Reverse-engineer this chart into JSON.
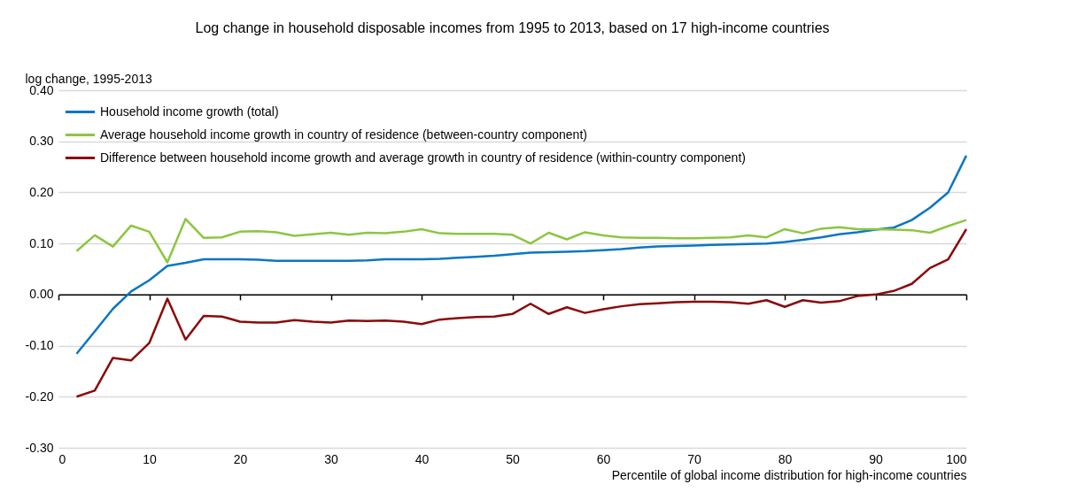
{
  "chart_data": {
    "type": "line",
    "title": "Log change in household disposable incomes from 1995 to 2013, based on 17 high-income countries",
    "xlabel": "Percentile of global income distribution for high-income countries",
    "ylabel": "log change, 1995-2013",
    "x": [
      2,
      4,
      6,
      8,
      10,
      12,
      14,
      16,
      18,
      20,
      22,
      24,
      26,
      28,
      30,
      32,
      34,
      36,
      38,
      40,
      42,
      44,
      46,
      48,
      50,
      52,
      54,
      56,
      58,
      60,
      62,
      64,
      66,
      68,
      70,
      72,
      74,
      76,
      78,
      80,
      82,
      84,
      86,
      88,
      90,
      92,
      94,
      96,
      98,
      100
    ],
    "series": [
      {
        "name": "Household income growth (total)",
        "color": "#0a76c6",
        "values": [
          -0.116,
          -0.072,
          -0.028,
          0.006,
          0.028,
          0.056,
          0.062,
          0.069,
          0.069,
          0.069,
          0.068,
          0.066,
          0.066,
          0.066,
          0.066,
          0.066,
          0.067,
          0.069,
          0.069,
          0.069,
          0.07,
          0.072,
          0.074,
          0.076,
          0.079,
          0.082,
          0.083,
          0.084,
          0.085,
          0.087,
          0.089,
          0.092,
          0.094,
          0.095,
          0.096,
          0.097,
          0.098,
          0.099,
          0.1,
          0.103,
          0.107,
          0.112,
          0.118,
          0.122,
          0.127,
          0.131,
          0.146,
          0.17,
          0.2,
          0.272
        ]
      },
      {
        "name": "Average household income growth in country of residence (between-country component)",
        "color": "#8cc63f",
        "values": [
          0.085,
          0.116,
          0.094,
          0.135,
          0.123,
          0.063,
          0.148,
          0.111,
          0.112,
          0.123,
          0.124,
          0.122,
          0.115,
          0.118,
          0.121,
          0.117,
          0.121,
          0.12,
          0.123,
          0.128,
          0.12,
          0.119,
          0.119,
          0.119,
          0.117,
          0.1,
          0.121,
          0.108,
          0.122,
          0.116,
          0.112,
          0.111,
          0.111,
          0.11,
          0.11,
          0.111,
          0.112,
          0.116,
          0.112,
          0.128,
          0.12,
          0.129,
          0.132,
          0.128,
          0.128,
          0.127,
          0.126,
          0.121,
          0.134,
          0.146
        ]
      },
      {
        "name": "Difference between household income growth and average growth in country of residence (within-country component)",
        "color": "#8b0a0a",
        "values": [
          -0.2,
          -0.188,
          -0.124,
          -0.129,
          -0.095,
          -0.008,
          -0.088,
          -0.042,
          -0.043,
          -0.053,
          -0.055,
          -0.055,
          -0.05,
          -0.053,
          -0.055,
          -0.051,
          -0.052,
          -0.051,
          -0.053,
          -0.058,
          -0.049,
          -0.046,
          -0.044,
          -0.043,
          -0.038,
          -0.018,
          -0.038,
          -0.025,
          -0.036,
          -0.029,
          -0.023,
          -0.019,
          -0.017,
          -0.015,
          -0.014,
          -0.014,
          -0.015,
          -0.018,
          -0.011,
          -0.024,
          -0.011,
          -0.016,
          -0.013,
          -0.003,
          0.0,
          0.007,
          0.021,
          0.052,
          0.069,
          0.128
        ]
      }
    ],
    "xlim": [
      0,
      100
    ],
    "xticks": [
      0,
      10,
      20,
      30,
      40,
      50,
      60,
      70,
      80,
      90,
      100
    ],
    "ylim": [
      -0.3,
      0.4
    ],
    "yticks": [
      {
        "value": -0.3,
        "label": "-0.30"
      },
      {
        "value": -0.2,
        "label": "-0.20"
      },
      {
        "value": -0.1,
        "label": "-0.10"
      },
      {
        "value": 0,
        "label": "0.00"
      },
      {
        "value": 0.1,
        "label": "0.10"
      },
      {
        "value": 0.2,
        "label": "0.20"
      },
      {
        "value": 0.3,
        "label": "0.30"
      },
      {
        "value": 0.4,
        "label": "0.40"
      }
    ],
    "grid": "y",
    "legend": "top left",
    "line_style": "solid"
  }
}
